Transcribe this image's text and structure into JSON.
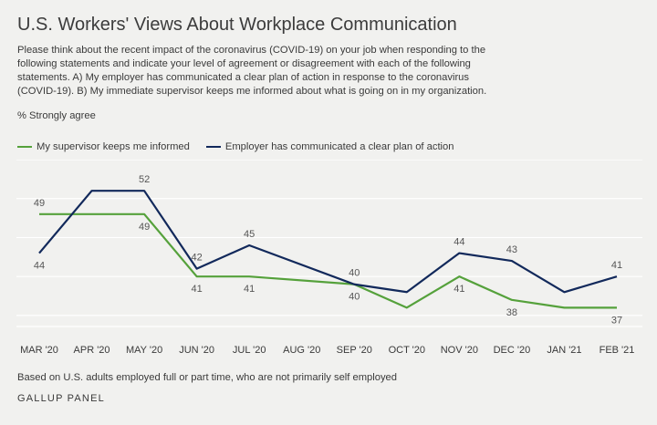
{
  "header": {
    "title": "U.S. Workers' Views About Workplace Communication",
    "question": "Please think about the recent impact of the coronavirus (COVID-19) on your job when responding to the following statements and indicate your level of agreement or disagreement with each of the following statements. A) My employer has communicated a clear plan of action in response to the coronavirus (COVID-19). B) My immediate supervisor keeps me informed about what is going on in my organization.",
    "unit": "% Strongly agree"
  },
  "footer": {
    "note": "Based on U.S. adults employed full or part time, who are not primarily self employed",
    "source": "GALLUP PANEL"
  },
  "chart_data": {
    "type": "line",
    "x": [
      "MAR '20",
      "APR '20",
      "MAY '20",
      "JUN '20",
      "JUL '20",
      "AUG '20",
      "SEP '20",
      "OCT '20",
      "NOV '20",
      "DEC '20",
      "JAN '21",
      "FEB '21"
    ],
    "ylim": [
      34,
      56
    ],
    "grid": true,
    "legend_position": "top-left",
    "series": [
      {
        "name": "My supervisor keeps me informed",
        "color": "#55a13b",
        "values": [
          49,
          49,
          49,
          41,
          41,
          null,
          40,
          37,
          41,
          38,
          37,
          37
        ],
        "labels": [
          "49",
          "",
          "49",
          "41",
          "41",
          "",
          "40",
          "",
          "41",
          "38",
          "",
          "37"
        ]
      },
      {
        "name": "Employer has communicated a clear plan of action",
        "color": "#12295b",
        "values": [
          44,
          52,
          52,
          42,
          45,
          null,
          40,
          39,
          44,
          43,
          39,
          41
        ],
        "labels": [
          "44",
          "",
          "52",
          "42",
          "45",
          "",
          "40",
          "",
          "44",
          "43",
          "",
          "41"
        ]
      }
    ]
  }
}
